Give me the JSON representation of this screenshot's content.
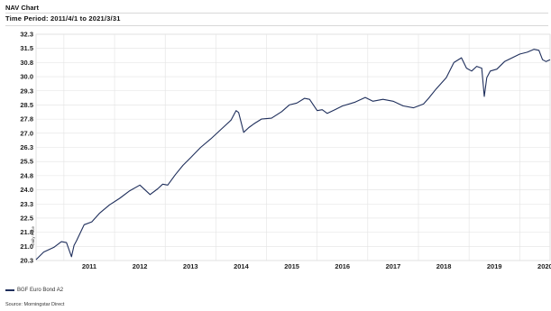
{
  "header": {
    "title": "NAV Chart",
    "period": "Time Period: 2011/4/1 to 2021/3/31"
  },
  "legend": {
    "series_name": "BGF Euro Bond A2",
    "color": "#1f2f5c"
  },
  "footer": {
    "source": "Source: Morningstar Direct"
  },
  "chart_data": {
    "type": "line",
    "ylabel": "Daily Price",
    "ylim": [
      20.3,
      32.3
    ],
    "yticks": [
      "32.3",
      "31.5",
      "30.8",
      "30.0",
      "29.3",
      "28.5",
      "27.8",
      "27.0",
      "26.3",
      "25.5",
      "24.8",
      "24.0",
      "23.3",
      "22.5",
      "21.8",
      "21.0",
      "20.3"
    ],
    "xlim": [
      2010.45,
      2020.6
    ],
    "xticks": [
      "2011",
      "2012",
      "2013",
      "2014",
      "2015",
      "2016",
      "2017",
      "2018",
      "2019",
      "2020"
    ],
    "grid": true,
    "series": [
      {
        "name": "BGF Euro Bond A2",
        "x": [
          2010.45,
          2010.6,
          2010.8,
          2010.95,
          2011.05,
          2011.15,
          2011.2,
          2011.25,
          2011.4,
          2011.55,
          2011.7,
          2011.9,
          2012.1,
          2012.3,
          2012.5,
          2012.7,
          2012.85,
          2012.95,
          2013.05,
          2013.2,
          2013.35,
          2013.5,
          2013.7,
          2013.9,
          2014.1,
          2014.3,
          2014.4,
          2014.45,
          2014.55,
          2014.65,
          2014.75,
          2014.9,
          2015.1,
          2015.3,
          2015.45,
          2015.6,
          2015.75,
          2015.85,
          2016.0,
          2016.1,
          2016.2,
          2016.35,
          2016.5,
          2016.75,
          2016.95,
          2017.1,
          2017.3,
          2017.5,
          2017.7,
          2017.9,
          2018.1,
          2018.2,
          2018.35,
          2018.55,
          2018.7,
          2018.85,
          2018.95,
          2019.05,
          2019.15,
          2019.25,
          2019.3,
          2019.35,
          2019.42,
          2019.55,
          2019.7,
          2019.85,
          2020.0,
          2020.15,
          2020.28,
          2020.38,
          2020.45,
          2020.52,
          2020.6
        ],
        "values": [
          20.35,
          20.75,
          21.0,
          21.3,
          21.25,
          20.5,
          21.1,
          21.35,
          22.2,
          22.35,
          22.8,
          23.25,
          23.6,
          24.0,
          24.3,
          23.8,
          24.1,
          24.35,
          24.3,
          24.85,
          25.35,
          25.75,
          26.3,
          26.75,
          27.25,
          27.75,
          28.25,
          28.15,
          27.1,
          27.35,
          27.55,
          27.8,
          27.85,
          28.2,
          28.55,
          28.65,
          28.9,
          28.85,
          28.25,
          28.3,
          28.1,
          28.3,
          28.5,
          28.7,
          28.95,
          28.75,
          28.85,
          28.75,
          28.5,
          28.4,
          28.6,
          28.9,
          29.4,
          30.0,
          30.8,
          31.05,
          30.5,
          30.35,
          30.6,
          30.5,
          29.0,
          30.0,
          30.35,
          30.45,
          30.85,
          31.05,
          31.25,
          31.35,
          31.5,
          31.45,
          30.95,
          30.85,
          30.95
        ]
      }
    ]
  }
}
